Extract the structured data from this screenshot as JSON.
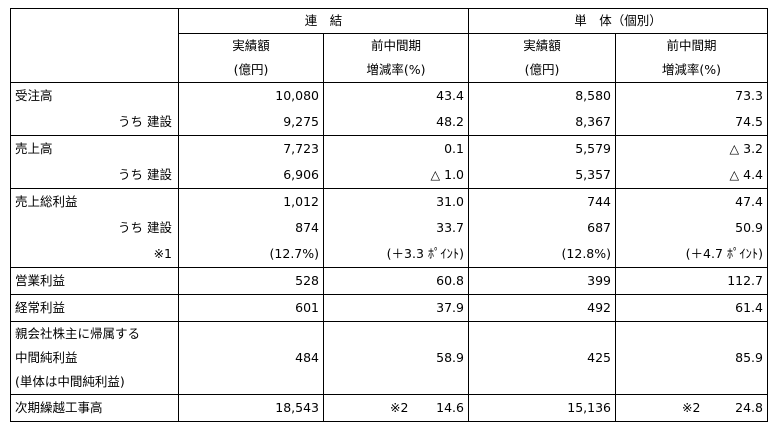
{
  "table": {
    "header": {
      "groups": [
        "連　結",
        "単　体（個別）"
      ],
      "columns": [
        [
          "実績額",
          "(億円)"
        ],
        [
          "前中間期",
          "増減率(%)"
        ],
        [
          "実績額",
          "(億円)"
        ],
        [
          "前中間期",
          "増減率(%)"
        ]
      ]
    },
    "groups": [
      [
        {
          "label": [
            "受注高"
          ],
          "cells": [
            "10,080",
            "43.4",
            "8,580",
            "73.3"
          ]
        },
        {
          "label": [
            "うち 建設"
          ],
          "indent": true,
          "cells": [
            "9,275",
            "48.2",
            "8,367",
            "74.5"
          ]
        }
      ],
      [
        {
          "label": [
            "売上高"
          ],
          "cells": [
            "7,723",
            "0.1",
            "5,579",
            "△ 3.2"
          ]
        },
        {
          "label": [
            "うち 建設"
          ],
          "indent": true,
          "cells": [
            "6,906",
            "△ 1.0",
            "5,357",
            "△ 4.4"
          ]
        }
      ],
      [
        {
          "label": [
            "売上総利益"
          ],
          "cells": [
            "1,012",
            "31.0",
            "744",
            "47.4"
          ]
        },
        {
          "label": [
            "うち 建設"
          ],
          "indent": true,
          "cells": [
            "874",
            "33.7",
            "687",
            "50.9"
          ]
        },
        {
          "label": [
            "※1"
          ],
          "indent": true,
          "cells": [
            "(12.7%)",
            "(＋3.3 ﾎﾟｲﾝﾄ)",
            "(12.8%)",
            "(＋4.7 ﾎﾟｲﾝﾄ)"
          ]
        }
      ],
      [
        {
          "label": [
            "営業利益"
          ],
          "cells": [
            "528",
            "60.8",
            "399",
            "112.7"
          ]
        }
      ],
      [
        {
          "label": [
            "経常利益"
          ],
          "cells": [
            "601",
            "37.9",
            "492",
            "61.4"
          ]
        }
      ],
      [
        {
          "label": [
            "親会社株主に帰属する",
            "中間純利益",
            "(単体は中間純利益)"
          ],
          "cells": [
            "484",
            "58.9",
            "425",
            "85.9"
          ]
        }
      ],
      [
        {
          "label": [
            "次期繰越工事高"
          ],
          "cells": [
            "18,543",
            {
              "note": "※2",
              "value": "14.6"
            },
            "15,136",
            {
              "note": "※2",
              "value": "24.8"
            }
          ]
        }
      ]
    ]
  }
}
